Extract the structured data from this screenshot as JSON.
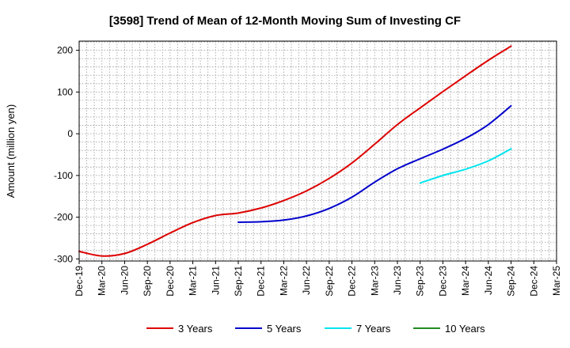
{
  "chart_data": {
    "type": "line",
    "title": "[3598]  Trend of Mean of 12-Month Moving Sum of Investing CF",
    "xlabel": "",
    "ylabel": "Amount (million yen)",
    "ylim": [
      -305,
      222
    ],
    "yticks": [
      200,
      100,
      0,
      -100,
      -200,
      -300
    ],
    "x_tick_labels": [
      "Dec-19",
      "Mar-20",
      "Jun-20",
      "Sep-20",
      "Dec-20",
      "Mar-21",
      "Jun-21",
      "Sep-21",
      "Dec-21",
      "Mar-22",
      "Jun-22",
      "Sep-22",
      "Dec-22",
      "Mar-23",
      "Jun-23",
      "Sep-23",
      "Dec-23",
      "Mar-24",
      "Jun-24",
      "Sep-24",
      "Dec-24",
      "Mar-25"
    ],
    "grid": true,
    "legend_position": "bottom",
    "series": [
      {
        "name": "3 Years",
        "color": "#dd0000",
        "x": [
          0,
          1,
          2,
          3,
          4,
          5,
          6,
          7,
          8,
          9,
          10,
          11,
          12,
          13,
          14,
          15,
          16,
          17,
          18,
          19
        ],
        "values": [
          -282,
          -293,
          -287,
          -265,
          -238,
          -213,
          -196,
          -190,
          -178,
          -160,
          -137,
          -107,
          -70,
          -25,
          22,
          62,
          101,
          139,
          176,
          210
        ]
      },
      {
        "name": "5 Years",
        "color": "#0000cc",
        "x": [
          7,
          8,
          9,
          10,
          11,
          12,
          13,
          14,
          15,
          16,
          17,
          18,
          19
        ],
        "values": [
          -212,
          -211,
          -207,
          -197,
          -179,
          -152,
          -116,
          -84,
          -60,
          -37,
          -11,
          22,
          67
        ]
      },
      {
        "name": "7 Years",
        "color": "#00e5ee",
        "x": [
          15,
          16,
          17,
          18,
          19
        ],
        "values": [
          -118,
          -100,
          -85,
          -65,
          -36
        ]
      },
      {
        "name": "10 Years",
        "color": "#228b22",
        "x": [],
        "values": []
      }
    ]
  }
}
